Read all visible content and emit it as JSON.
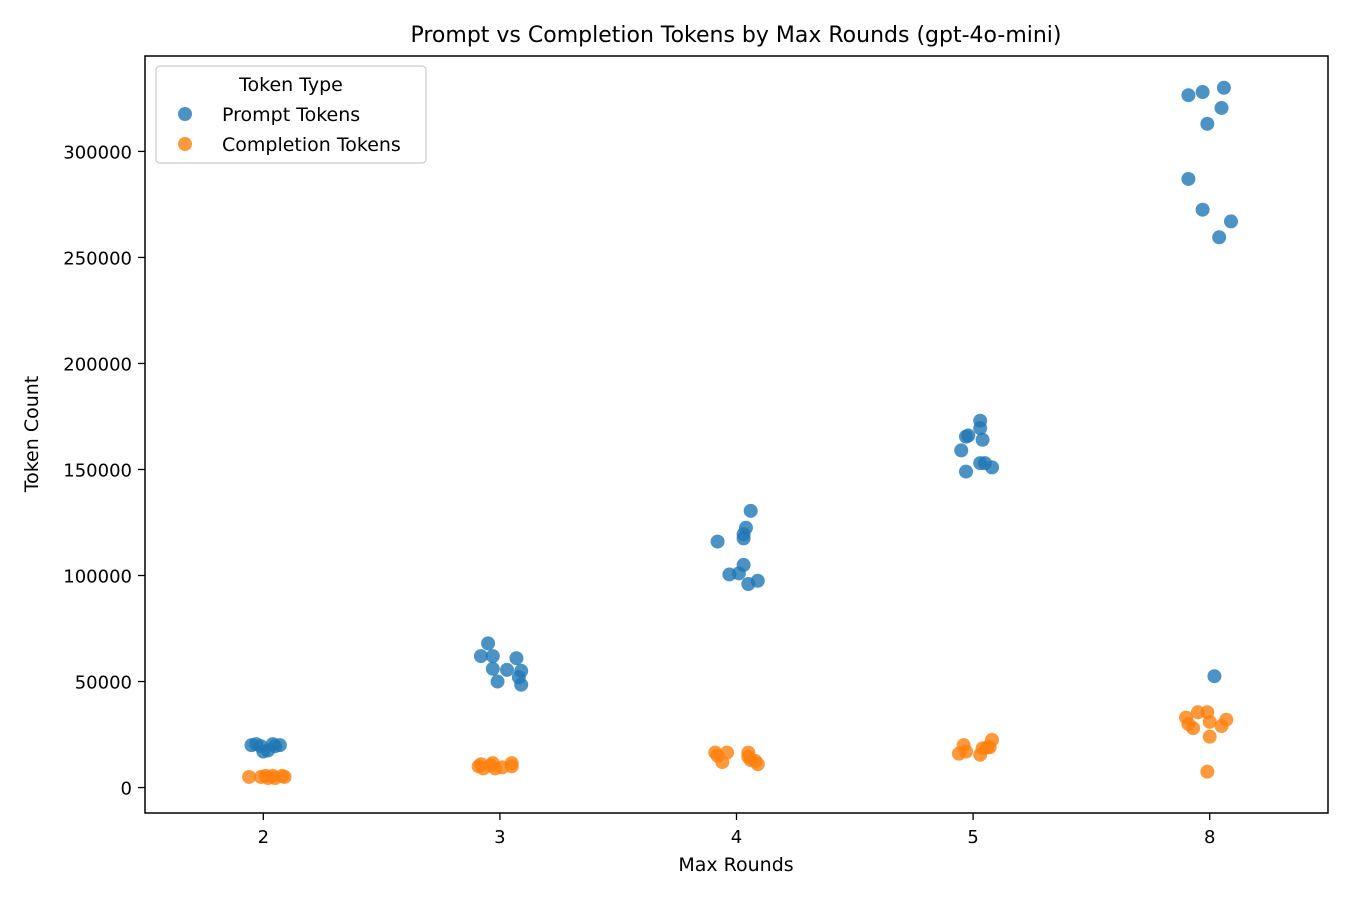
{
  "chart_data": {
    "type": "scatter",
    "title": "Prompt vs Completion Tokens by Max Rounds (gpt-4o-mini)",
    "xlabel": "Max Rounds",
    "ylabel": "Token Count",
    "categories": [
      "2",
      "3",
      "4",
      "5",
      "8"
    ],
    "yticks": [
      0,
      50000,
      100000,
      150000,
      200000,
      250000,
      300000
    ],
    "ytick_labels": [
      "0",
      "50000",
      "100000",
      "150000",
      "200000",
      "250000",
      "300000"
    ],
    "ylim": [
      -12000,
      345000
    ],
    "grid": false,
    "legend": {
      "title": "Token Type",
      "placement": "top-left"
    },
    "series": [
      {
        "name": "Prompt Tokens",
        "color": "#1f77b4",
        "points": [
          {
            "category": "2",
            "jitter": -0.05,
            "y": 20000
          },
          {
            "category": "2",
            "jitter": -0.03,
            "y": 20500
          },
          {
            "category": "2",
            "jitter": -0.01,
            "y": 19500
          },
          {
            "category": "2",
            "jitter": 0.0,
            "y": 17000
          },
          {
            "category": "2",
            "jitter": 0.02,
            "y": 17500
          },
          {
            "category": "2",
            "jitter": 0.04,
            "y": 20500
          },
          {
            "category": "2",
            "jitter": 0.05,
            "y": 19500
          },
          {
            "category": "2",
            "jitter": 0.07,
            "y": 20000
          },
          {
            "category": "3",
            "jitter": -0.08,
            "y": 62000
          },
          {
            "category": "3",
            "jitter": -0.05,
            "y": 68000
          },
          {
            "category": "3",
            "jitter": -0.03,
            "y": 62000
          },
          {
            "category": "3",
            "jitter": -0.03,
            "y": 56000
          },
          {
            "category": "3",
            "jitter": -0.01,
            "y": 50000
          },
          {
            "category": "3",
            "jitter": 0.03,
            "y": 55500
          },
          {
            "category": "3",
            "jitter": 0.07,
            "y": 61000
          },
          {
            "category": "3",
            "jitter": 0.08,
            "y": 52000
          },
          {
            "category": "3",
            "jitter": 0.09,
            "y": 55000
          },
          {
            "category": "3",
            "jitter": 0.09,
            "y": 48500
          },
          {
            "category": "4",
            "jitter": -0.08,
            "y": 116000
          },
          {
            "category": "4",
            "jitter": -0.03,
            "y": 100500
          },
          {
            "category": "4",
            "jitter": 0.01,
            "y": 101000
          },
          {
            "category": "4",
            "jitter": 0.03,
            "y": 105000
          },
          {
            "category": "4",
            "jitter": 0.03,
            "y": 117500
          },
          {
            "category": "4",
            "jitter": 0.03,
            "y": 119500
          },
          {
            "category": "4",
            "jitter": 0.04,
            "y": 122500
          },
          {
            "category": "4",
            "jitter": 0.05,
            "y": 96000
          },
          {
            "category": "4",
            "jitter": 0.06,
            "y": 130500
          },
          {
            "category": "4",
            "jitter": 0.09,
            "y": 97500
          },
          {
            "category": "5",
            "jitter": -0.05,
            "y": 159000
          },
          {
            "category": "5",
            "jitter": -0.03,
            "y": 165500
          },
          {
            "category": "5",
            "jitter": -0.03,
            "y": 149000
          },
          {
            "category": "5",
            "jitter": -0.02,
            "y": 166000
          },
          {
            "category": "5",
            "jitter": 0.03,
            "y": 173000
          },
          {
            "category": "5",
            "jitter": 0.03,
            "y": 169500
          },
          {
            "category": "5",
            "jitter": 0.03,
            "y": 153000
          },
          {
            "category": "5",
            "jitter": 0.04,
            "y": 164000
          },
          {
            "category": "5",
            "jitter": 0.05,
            "y": 153000
          },
          {
            "category": "5",
            "jitter": 0.08,
            "y": 151000
          },
          {
            "category": "8",
            "jitter": -0.09,
            "y": 326500
          },
          {
            "category": "8",
            "jitter": -0.09,
            "y": 287000
          },
          {
            "category": "8",
            "jitter": -0.03,
            "y": 328000
          },
          {
            "category": "8",
            "jitter": -0.03,
            "y": 272500
          },
          {
            "category": "8",
            "jitter": -0.01,
            "y": 313000
          },
          {
            "category": "8",
            "jitter": 0.02,
            "y": 52500
          },
          {
            "category": "8",
            "jitter": 0.04,
            "y": 259500
          },
          {
            "category": "8",
            "jitter": 0.05,
            "y": 320500
          },
          {
            "category": "8",
            "jitter": 0.06,
            "y": 330000
          },
          {
            "category": "8",
            "jitter": 0.09,
            "y": 267000
          }
        ]
      },
      {
        "name": "Completion Tokens",
        "color": "#ff7f0e",
        "points": [
          {
            "category": "2",
            "jitter": -0.06,
            "y": 5000
          },
          {
            "category": "2",
            "jitter": -0.01,
            "y": 5000
          },
          {
            "category": "2",
            "jitter": 0.01,
            "y": 5500
          },
          {
            "category": "2",
            "jitter": 0.02,
            "y": 4500
          },
          {
            "category": "2",
            "jitter": 0.04,
            "y": 5500
          },
          {
            "category": "2",
            "jitter": 0.05,
            "y": 4500
          },
          {
            "category": "2",
            "jitter": 0.08,
            "y": 5500
          },
          {
            "category": "2",
            "jitter": 0.09,
            "y": 5000
          },
          {
            "category": "3",
            "jitter": -0.09,
            "y": 10000
          },
          {
            "category": "3",
            "jitter": -0.08,
            "y": 11000
          },
          {
            "category": "3",
            "jitter": -0.07,
            "y": 9000
          },
          {
            "category": "3",
            "jitter": -0.04,
            "y": 10500
          },
          {
            "category": "3",
            "jitter": -0.03,
            "y": 11500
          },
          {
            "category": "3",
            "jitter": -0.02,
            "y": 9000
          },
          {
            "category": "3",
            "jitter": 0.01,
            "y": 9500
          },
          {
            "category": "3",
            "jitter": 0.05,
            "y": 10000
          },
          {
            "category": "3",
            "jitter": 0.05,
            "y": 11500
          },
          {
            "category": "4",
            "jitter": -0.09,
            "y": 16500
          },
          {
            "category": "4",
            "jitter": -0.08,
            "y": 15000
          },
          {
            "category": "4",
            "jitter": -0.06,
            "y": 12000
          },
          {
            "category": "4",
            "jitter": -0.04,
            "y": 16500
          },
          {
            "category": "4",
            "jitter": 0.05,
            "y": 16500
          },
          {
            "category": "4",
            "jitter": 0.05,
            "y": 14500
          },
          {
            "category": "4",
            "jitter": 0.06,
            "y": 13000
          },
          {
            "category": "4",
            "jitter": 0.08,
            "y": 12500
          },
          {
            "category": "4",
            "jitter": 0.09,
            "y": 11000
          },
          {
            "category": "5",
            "jitter": -0.06,
            "y": 16000
          },
          {
            "category": "5",
            "jitter": -0.04,
            "y": 20000
          },
          {
            "category": "5",
            "jitter": -0.03,
            "y": 17000
          },
          {
            "category": "5",
            "jitter": 0.03,
            "y": 15500
          },
          {
            "category": "5",
            "jitter": 0.04,
            "y": 18500
          },
          {
            "category": "5",
            "jitter": 0.06,
            "y": 19000
          },
          {
            "category": "5",
            "jitter": 0.07,
            "y": 19000
          },
          {
            "category": "5",
            "jitter": 0.08,
            "y": 22500
          },
          {
            "category": "8",
            "jitter": -0.1,
            "y": 33000
          },
          {
            "category": "8",
            "jitter": -0.09,
            "y": 30000
          },
          {
            "category": "8",
            "jitter": -0.07,
            "y": 28000
          },
          {
            "category": "8",
            "jitter": -0.05,
            "y": 35500
          },
          {
            "category": "8",
            "jitter": -0.01,
            "y": 7500
          },
          {
            "category": "8",
            "jitter": -0.01,
            "y": 35500
          },
          {
            "category": "8",
            "jitter": 0.0,
            "y": 31000
          },
          {
            "category": "8",
            "jitter": 0.0,
            "y": 24000
          },
          {
            "category": "8",
            "jitter": 0.05,
            "y": 29000
          },
          {
            "category": "8",
            "jitter": 0.07,
            "y": 32000
          }
        ]
      }
    ]
  }
}
